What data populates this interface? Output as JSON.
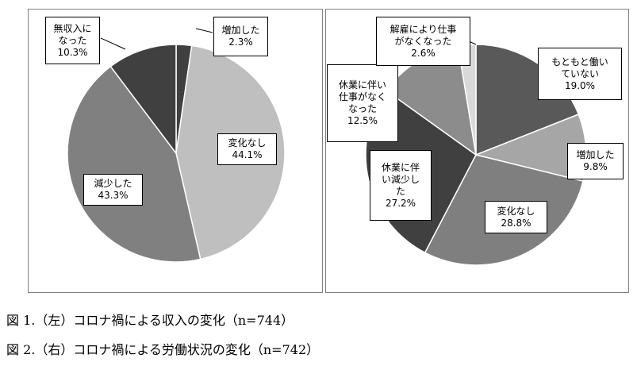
{
  "chart_data": [
    {
      "type": "pie",
      "title": "",
      "slices": [
        {
          "label": "増加した",
          "value": 2.3,
          "value_label": "2.3%",
          "color": "#404040"
        },
        {
          "label": "変化なし",
          "value": 44.1,
          "value_label": "44.1%",
          "color": "#bfbfbf"
        },
        {
          "label": "減少した",
          "value": 43.3,
          "value_label": "43.3%",
          "color": "#808080"
        },
        {
          "label": "無収入に\nなった",
          "value": 10.3,
          "value_label": "10.3%",
          "color": "#404040"
        }
      ]
    },
    {
      "type": "pie",
      "title": "",
      "slices": [
        {
          "label": "もともと働い\nていない",
          "value": 19.0,
          "value_label": "19.0%",
          "color": "#595959"
        },
        {
          "label": "増加した",
          "value": 9.8,
          "value_label": "9.8%",
          "color": "#a6a6a6"
        },
        {
          "label": "変化なし",
          "value": 28.8,
          "value_label": "28.8%",
          "color": "#7f7f7f"
        },
        {
          "label": "休業に伴\nい減少し\nた",
          "value": 27.2,
          "value_label": "27.2%",
          "color": "#404040"
        },
        {
          "label": "休業に伴い\n仕事がなく\nなった",
          "value": 12.5,
          "value_label": "12.5%",
          "color": "#8c8c8c"
        },
        {
          "label": "解雇により仕事\nがなくなった",
          "value": 2.6,
          "value_label": "2.6%",
          "color": "#d9d9d9"
        }
      ]
    }
  ],
  "captions": {
    "fig1": "図 1.（左）コロナ禍による収入の変化（n=744）",
    "fig2": "図 2.（右）コロナ禍による労働状況の変化（n=742）"
  }
}
